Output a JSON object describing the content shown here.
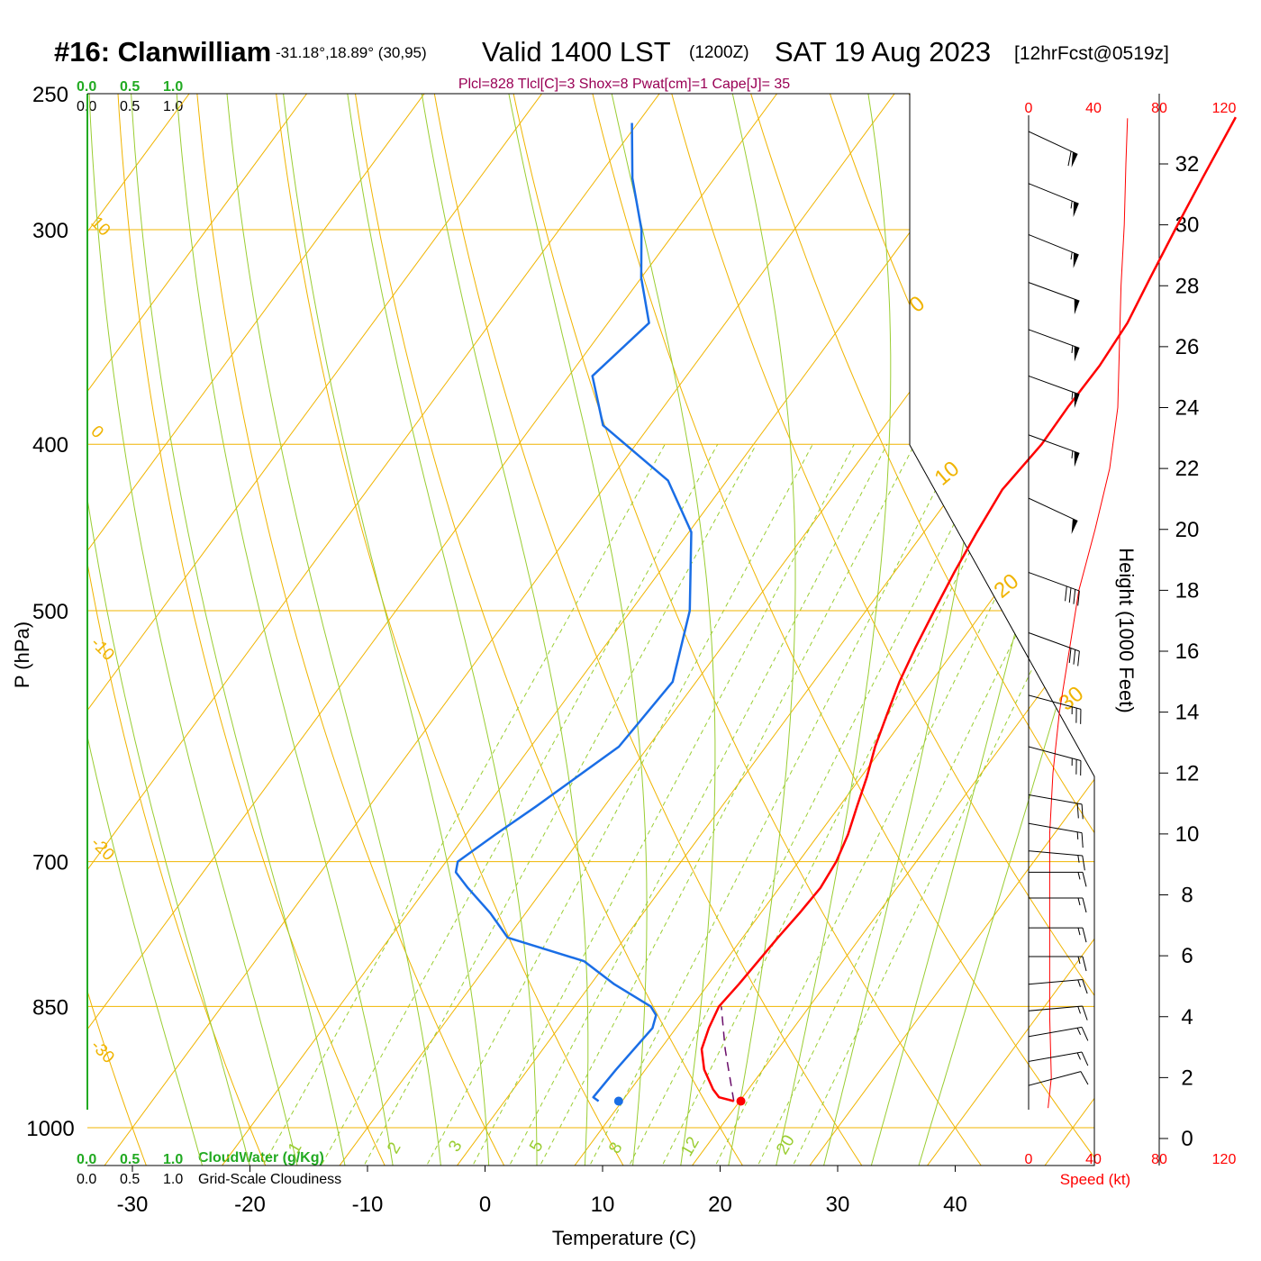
{
  "header": {
    "station": "#16: Clanwilliam",
    "coords": "-31.18°,18.89° (30,95)",
    "valid": "Valid 1400 LST",
    "zulu": "(1200Z)",
    "date": "SAT 19 Aug 2023",
    "forecast": "[12hrFcst@0519z]",
    "indices": "Plcl=828 Tlcl[C]=3 Shox=8 Pwat[cm]=1 Cape[J]= 35"
  },
  "scales": {
    "cloudwater_ticks": [
      "0.0",
      "0.5",
      "1.0"
    ],
    "cloudiness_ticks": [
      "0.0",
      "0.5",
      "1.0"
    ],
    "cloudwater_label": "CloudWater (g/Kg)",
    "cloudiness_label": "Grid-Scale Cloudiness",
    "speed_ticks": [
      "0",
      "40",
      "80",
      "120"
    ],
    "speed_label": "Speed (kt)"
  },
  "colors": {
    "isotherm": "#f0b400",
    "dry_adiabat": "#f0b400",
    "moist_adiabat": "#9acd32",
    "mixing_ratio": "#9acd32",
    "temperature": "#ff0000",
    "dewpoint": "#1a6ee6",
    "parcel": "#6a0d6a",
    "cloud_axis": "#22aa22",
    "indices": "#990055"
  },
  "chart_data": {
    "type": "skew-t",
    "xlabel": "Temperature (C)",
    "ylabel": "P (hPa)",
    "right_ylabel": "Height (1000 Feet)",
    "pressure_ticks": [
      250,
      300,
      400,
      500,
      700,
      850,
      1000
    ],
    "temperature_ticks": [
      -30,
      -20,
      -10,
      0,
      10,
      20,
      30,
      40
    ],
    "height_ticks": [
      0,
      2,
      4,
      6,
      8,
      10,
      12,
      14,
      16,
      18,
      20,
      22,
      24,
      26,
      28,
      30,
      32
    ],
    "isotherm_labels": [
      -30,
      -20,
      -10,
      0,
      10
    ],
    "dry_adiabat_labels": [
      0,
      10,
      20,
      30
    ],
    "mixing_ratio_labels": [
      "1",
      "2",
      "3",
      "5",
      "8",
      "12",
      "20"
    ],
    "temperature": [
      {
        "p": 965,
        "t": 19.5
      },
      {
        "p": 960,
        "t": 18.0
      },
      {
        "p": 950,
        "t": 17.0
      },
      {
        "p": 925,
        "t": 15.0
      },
      {
        "p": 900,
        "t": 13.5
      },
      {
        "p": 875,
        "t": 12.8
      },
      {
        "p": 850,
        "t": 12.3
      },
      {
        "p": 825,
        "t": 12.6
      },
      {
        "p": 800,
        "t": 12.8
      },
      {
        "p": 775,
        "t": 13.0
      },
      {
        "p": 750,
        "t": 13.3
      },
      {
        "p": 725,
        "t": 13.5
      },
      {
        "p": 700,
        "t": 13.2
      },
      {
        "p": 675,
        "t": 12.5
      },
      {
        "p": 650,
        "t": 11.5
      },
      {
        "p": 625,
        "t": 10.5
      },
      {
        "p": 600,
        "t": 9.3
      },
      {
        "p": 575,
        "t": 8.3
      },
      {
        "p": 550,
        "t": 7.3
      },
      {
        "p": 525,
        "t": 6.5
      },
      {
        "p": 500,
        "t": 5.8
      },
      {
        "p": 475,
        "t": 5.1
      },
      {
        "p": 450,
        "t": 4.5
      },
      {
        "p": 425,
        "t": 4.0
      },
      {
        "p": 400,
        "t": 4.5
      },
      {
        "p": 380,
        "t": 4.4
      },
      {
        "p": 360,
        "t": 4.5
      },
      {
        "p": 340,
        "t": 4.2
      },
      {
        "p": 320,
        "t": 3.3
      },
      {
        "p": 300,
        "t": 2.4
      },
      {
        "p": 280,
        "t": 1.5
      },
      {
        "p": 258,
        "t": 0.5
      }
    ],
    "dewpoint": [
      {
        "p": 965,
        "t": 8.0
      },
      {
        "p": 960,
        "t": 7.3
      },
      {
        "p": 925,
        "t": 7.5
      },
      {
        "p": 875,
        "t": 8.0
      },
      {
        "p": 860,
        "t": 7.5
      },
      {
        "p": 850,
        "t": 6.5
      },
      {
        "p": 825,
        "t": 2.0
      },
      {
        "p": 800,
        "t": -2.0
      },
      {
        "p": 775,
        "t": -10.0
      },
      {
        "p": 750,
        "t": -13.0
      },
      {
        "p": 725,
        "t": -16.5
      },
      {
        "p": 710,
        "t": -18.5
      },
      {
        "p": 700,
        "t": -19.0
      },
      {
        "p": 675,
        "t": -17.5
      },
      {
        "p": 650,
        "t": -15.8
      },
      {
        "p": 600,
        "t": -12.5
      },
      {
        "p": 550,
        "t": -12.0
      },
      {
        "p": 500,
        "t": -15.0
      },
      {
        "p": 450,
        "t": -19.8
      },
      {
        "p": 420,
        "t": -25.0
      },
      {
        "p": 390,
        "t": -34.0
      },
      {
        "p": 365,
        "t": -38.0
      },
      {
        "p": 340,
        "t": -36.5
      },
      {
        "p": 320,
        "t": -40.0
      },
      {
        "p": 300,
        "t": -43.0
      },
      {
        "p": 280,
        "t": -47.0
      },
      {
        "p": 260,
        "t": -50.5
      }
    ],
    "surface_temperature": 19.5,
    "surface_dewpoint": 8.0,
    "surface_pressure": 965,
    "parcel_path": [
      {
        "p": 965,
        "t": 19.5
      },
      {
        "p": 900,
        "t": 15.5
      },
      {
        "p": 850,
        "t": 12.5
      }
    ],
    "wind_speed_profile_kt": [
      {
        "h": 1.0,
        "v": 12
      },
      {
        "h": 2,
        "v": 14
      },
      {
        "h": 4,
        "v": 13
      },
      {
        "h": 6,
        "v": 13
      },
      {
        "h": 8,
        "v": 13
      },
      {
        "h": 10,
        "v": 13
      },
      {
        "h": 12,
        "v": 15
      },
      {
        "h": 14,
        "v": 19
      },
      {
        "h": 16,
        "v": 25
      },
      {
        "h": 18,
        "v": 31
      },
      {
        "h": 20,
        "v": 41
      },
      {
        "h": 22,
        "v": 50
      },
      {
        "h": 24,
        "v": 55
      },
      {
        "h": 26,
        "v": 56
      },
      {
        "h": 28,
        "v": 57
      },
      {
        "h": 30,
        "v": 59
      },
      {
        "h": 32,
        "v": 60
      },
      {
        "h": 33.5,
        "v": 61
      }
    ],
    "wind_barbs": [
      {
        "p": 263,
        "dir": 295,
        "spd": 60
      },
      {
        "p": 282,
        "dir": 292,
        "spd": 55
      },
      {
        "p": 302,
        "dir": 292,
        "spd": 55
      },
      {
        "p": 322,
        "dir": 290,
        "spd": 50
      },
      {
        "p": 343,
        "dir": 290,
        "spd": 55
      },
      {
        "p": 365,
        "dir": 290,
        "spd": 55
      },
      {
        "p": 395,
        "dir": 290,
        "spd": 55
      },
      {
        "p": 430,
        "dir": 295,
        "spd": 50
      },
      {
        "p": 475,
        "dir": 290,
        "spd": 40
      },
      {
        "p": 515,
        "dir": 290,
        "spd": 30
      },
      {
        "p": 560,
        "dir": 285,
        "spd": 25
      },
      {
        "p": 600,
        "dir": 285,
        "spd": 25
      },
      {
        "p": 640,
        "dir": 280,
        "spd": 20
      },
      {
        "p": 665,
        "dir": 280,
        "spd": 15
      },
      {
        "p": 690,
        "dir": 275,
        "spd": 15
      },
      {
        "p": 710,
        "dir": 270,
        "spd": 15
      },
      {
        "p": 735,
        "dir": 270,
        "spd": 15
      },
      {
        "p": 765,
        "dir": 270,
        "spd": 15
      },
      {
        "p": 795,
        "dir": 270,
        "spd": 15
      },
      {
        "p": 825,
        "dir": 265,
        "spd": 15
      },
      {
        "p": 855,
        "dir": 265,
        "spd": 15
      },
      {
        "p": 885,
        "dir": 260,
        "spd": 15
      },
      {
        "p": 915,
        "dir": 260,
        "spd": 15
      },
      {
        "p": 945,
        "dir": 255,
        "spd": 10
      }
    ]
  }
}
